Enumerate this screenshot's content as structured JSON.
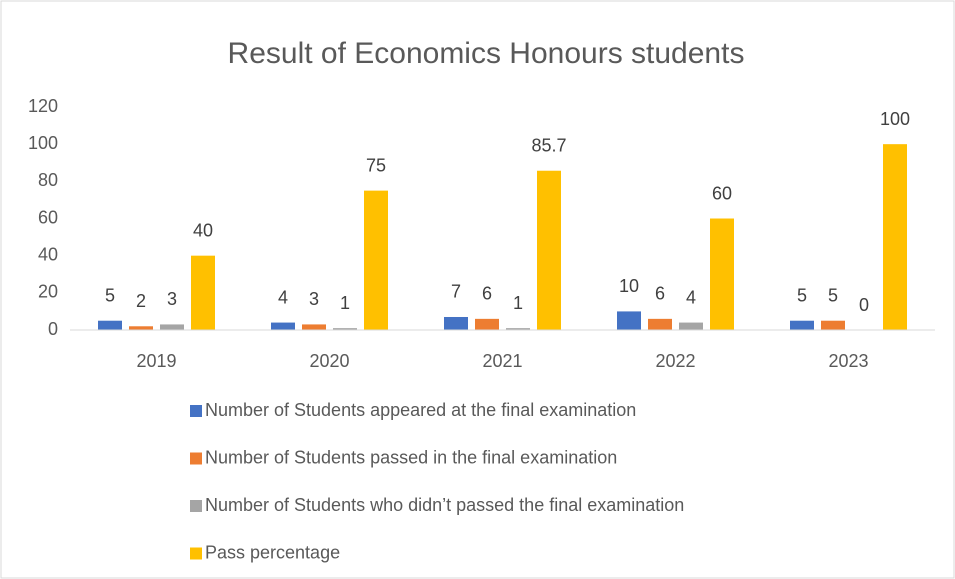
{
  "chart_data": {
    "type": "bar",
    "title": "Result of Economics Honours students",
    "categories": [
      "2019",
      "2020",
      "2021",
      "2022",
      "2023"
    ],
    "series": [
      {
        "name": "Number of Students appeared at the final examination",
        "color": "#4472c4",
        "values": [
          5,
          4,
          7,
          10,
          5
        ]
      },
      {
        "name": "Number of Students passed in the final examination",
        "color": "#ed7d31",
        "values": [
          2,
          3,
          6,
          6,
          5
        ]
      },
      {
        "name": "Number of Students who didn’t passed the final examination",
        "color": "#a5a5a5",
        "values": [
          3,
          1,
          1,
          4,
          0
        ]
      },
      {
        "name": "Pass percentage",
        "color": "#ffc000",
        "values": [
          40,
          75,
          85.7,
          60,
          100
        ]
      }
    ],
    "ylim": [
      0,
      120
    ],
    "yticks": [
      0,
      20,
      40,
      60,
      80,
      100,
      120
    ],
    "grid": false,
    "legend": "bottom",
    "data_labels": true
  }
}
